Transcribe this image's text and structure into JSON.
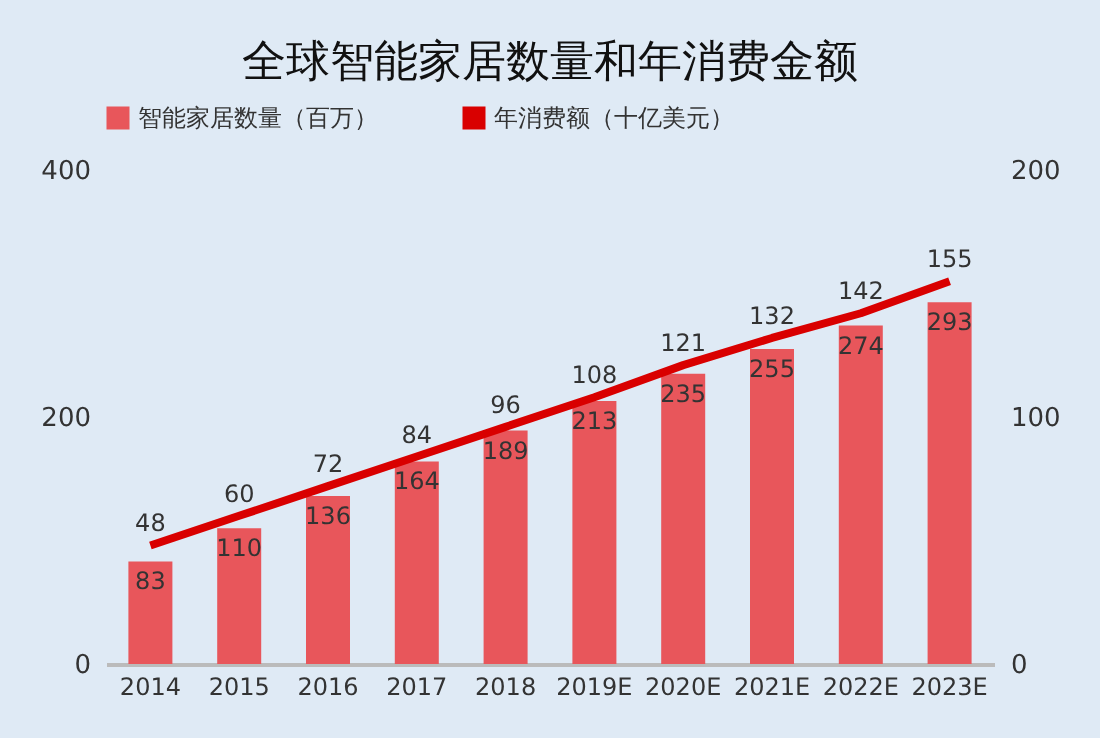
{
  "chart_data": {
    "type": "bar",
    "title": "全球智能家居数量和年消费金额",
    "categories": [
      "2014",
      "2015",
      "2016",
      "2017",
      "2018",
      "2019E",
      "2020E",
      "2021E",
      "2022E",
      "2023E"
    ],
    "series": [
      {
        "name": "智能家居数量（百万）",
        "color": "#e8565b",
        "values": [
          83,
          110,
          136,
          164,
          189,
          213,
          235,
          255,
          274,
          293
        ]
      },
      {
        "name": "年消费额（十亿美元）",
        "color": "#d90000",
        "type": "line",
        "axis": "y2",
        "values": [
          48,
          60,
          72,
          84,
          96,
          108,
          121,
          132,
          142,
          155
        ]
      }
    ],
    "ylim": [
      0,
      400
    ],
    "yticks": [
      0,
      200,
      400
    ],
    "y2lim": [
      0,
      200
    ],
    "y2ticks": [
      0,
      100,
      200
    ],
    "data_labels": true,
    "legend": "top",
    "grid": false
  }
}
